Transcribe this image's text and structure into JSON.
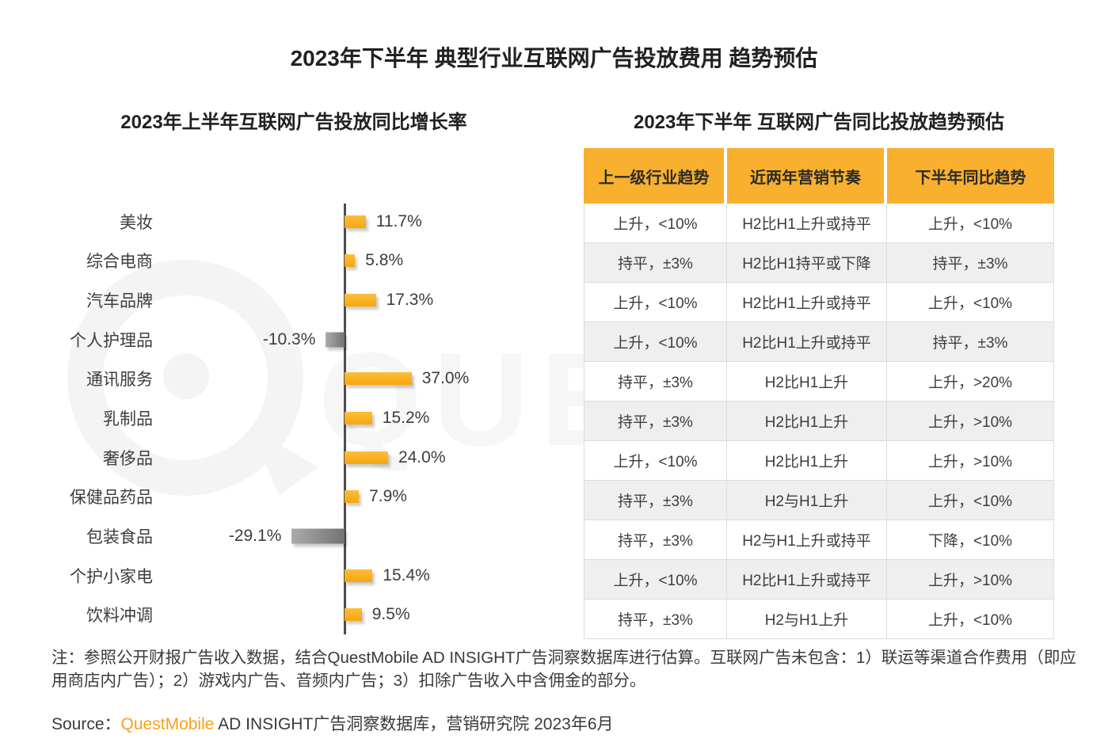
{
  "page": {
    "title": "2023年下半年 典型行业互联网广告投放费用 趋势预估",
    "note": "注：参照公开财报广告收入数据，结合QuestMobile AD INSIGHT广告洞察数据库进行估算。互联网广告未包含：1）联运等渠道合作费用（即应用商店内广告）；2）游戏内广告、音频内广告；3）扣除广告收入中含佣金的部分。",
    "source": {
      "prefix": "Source：",
      "brand": "QuestMobile",
      "suffix": " AD INSIGHT广告洞察数据库，营销研究院 2023年6月"
    },
    "watermark": {
      "text": "QUES",
      "logo": "questmobile-bubble-logo"
    }
  },
  "colors": {
    "accent_yellow": "#F8B02E",
    "bar_yellow_light": "#FCBE3A",
    "bar_yellow_dark": "#F8A60D",
    "bar_gray_light": "#ABABAB",
    "bar_gray_dark": "#737373",
    "stripe_gray": "#EFEFEF",
    "axis_gray": "#4D4D4D",
    "text_dark": "#3D3D3D",
    "brand_orange": "#F7A11C"
  },
  "chart_data": [
    {
      "type": "bar",
      "orientation": "horizontal",
      "title": "2023年上半年互联网广告投放同比增长率",
      "unit": "%",
      "categories": [
        "美妆",
        "综合电商",
        "汽车品牌",
        "个人护理品",
        "通讯服务",
        "乳制品",
        "奢侈品",
        "保健品药品",
        "包装食品",
        "个护小家电",
        "饮料冲调"
      ],
      "values": [
        11.7,
        5.8,
        17.3,
        -10.3,
        37.0,
        15.2,
        24.0,
        7.9,
        -29.1,
        15.4,
        9.5
      ],
      "value_labels": [
        "11.7%",
        "5.8%",
        "17.3%",
        "-10.3%",
        "37.0%",
        "15.2%",
        "24.0%",
        "7.9%",
        "-29.1%",
        "15.4%",
        "9.5%"
      ],
      "xlim": [
        -40,
        40
      ],
      "zero_axis": true,
      "grid": false,
      "legend": false,
      "positive_color": "#F9AC18",
      "negative_color": "#8C8C8C"
    },
    {
      "type": "table",
      "title": "2023年下半年 互联网广告同比投放趋势预估",
      "headers": [
        "上一级行业趋势",
        "近两年营销节奏",
        "下半年同比趋势"
      ],
      "rows": [
        [
          "上升，<10%",
          "H2比H1上升或持平",
          "上升，<10%"
        ],
        [
          "持平，±3%",
          "H2比H1持平或下降",
          "持平，±3%"
        ],
        [
          "上升，<10%",
          "H2比H1上升或持平",
          "上升，<10%"
        ],
        [
          "上升，<10%",
          "H2比H1上升或持平",
          "持平，±3%"
        ],
        [
          "持平，±3%",
          "H2比H1上升",
          "上升，>20%"
        ],
        [
          "持平，±3%",
          "H2比H1上升",
          "上升，>10%"
        ],
        [
          "上升，<10%",
          "H2比H1上升",
          "上升，>10%"
        ],
        [
          "持平，±3%",
          "H2与H1上升",
          "上升，<10%"
        ],
        [
          "持平，±3%",
          "H2与H1上升或持平",
          "下降，<10%"
        ],
        [
          "上升，<10%",
          "H2比H1上升或持平",
          "上升，>10%"
        ],
        [
          "持平，±3%",
          "H2与H1上升",
          "上升，<10%"
        ]
      ]
    }
  ]
}
